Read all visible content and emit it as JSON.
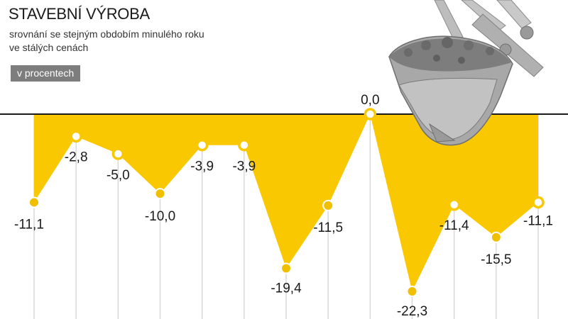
{
  "chart_data": {
    "type": "area",
    "title": "STAVEBNÍ VÝROBA",
    "subtitle": [
      "srovnání se stejným obdobím minulého roku",
      "ve stálých cenách"
    ],
    "unit_label": "v procentech",
    "xlabel": "",
    "ylabel": "",
    "ylim": [
      -22.3,
      0
    ],
    "values": [
      -11.1,
      -2.8,
      -5.0,
      -10.0,
      -3.9,
      -3.9,
      -19.4,
      -11.5,
      0.0,
      -22.3,
      -11.4,
      -15.5,
      -11.1
    ],
    "labels": [
      "-11,1",
      "-2,8",
      "-5,0",
      "-10,0",
      "-3,9",
      "-3,9",
      "-19,4",
      "-11,5",
      "0,0",
      "-22,3",
      "-11,4",
      "-15,5",
      "-11,1"
    ],
    "hollow_markers": [
      1,
      2,
      4,
      5,
      8,
      10,
      12
    ],
    "grid": true,
    "colors": {
      "fill": "#f9c800",
      "marker_solid": "#f0c000",
      "marker_ring": "#f9c800",
      "gridline": "#d6d6d6",
      "baseline": "#1a1a1a",
      "text": "#1a1a1a",
      "badge": "#7d7d7d"
    }
  },
  "decoration": {
    "icon": "excavator-bucket-icon"
  }
}
